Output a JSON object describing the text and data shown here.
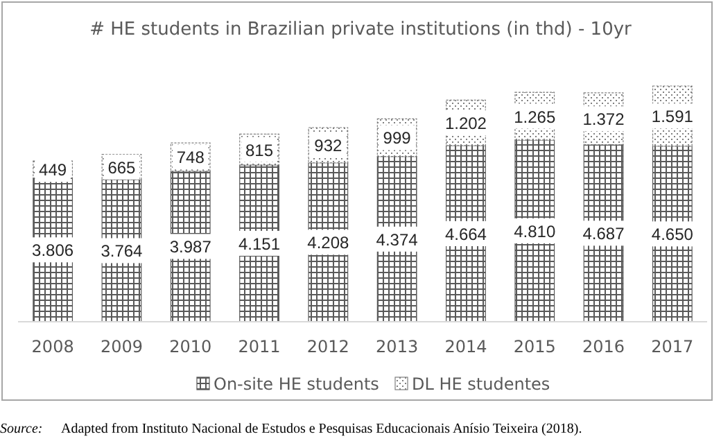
{
  "chart_data": {
    "type": "bar",
    "title": "# HE students in Brazilian private institutions (in thd) - 10yr",
    "categories": [
      "2008",
      "2009",
      "2010",
      "2011",
      "2012",
      "2013",
      "2014",
      "2015",
      "2016",
      "2017"
    ],
    "stacked": true,
    "legend": "bottom",
    "series": [
      {
        "name": "On-site HE students",
        "color": "#595959",
        "values": [
          3806,
          3764,
          3987,
          4151,
          4208,
          4374,
          4664,
          4810,
          4687,
          4650
        ],
        "value_labels": [
          "3.806",
          "3.764",
          "3.987",
          "4.151",
          "4.208",
          "4.374",
          "4.664",
          "4.810",
          "4.687",
          "4.650"
        ]
      },
      {
        "name": "DL HE studentes",
        "color": "#7f7f7f",
        "values": [
          449,
          665,
          748,
          815,
          932,
          999,
          1202,
          1265,
          1372,
          1591
        ],
        "value_labels": [
          "449",
          "665",
          "748",
          "815",
          "932",
          "999",
          "1.202",
          "1.265",
          "1.372",
          "1.591"
        ]
      }
    ],
    "annotations": [
      "Source:",
      "Adapted from Instituto Nacional de Estudos e Pesquisas Educacionais Anísio Teixeira (2018)."
    ]
  }
}
